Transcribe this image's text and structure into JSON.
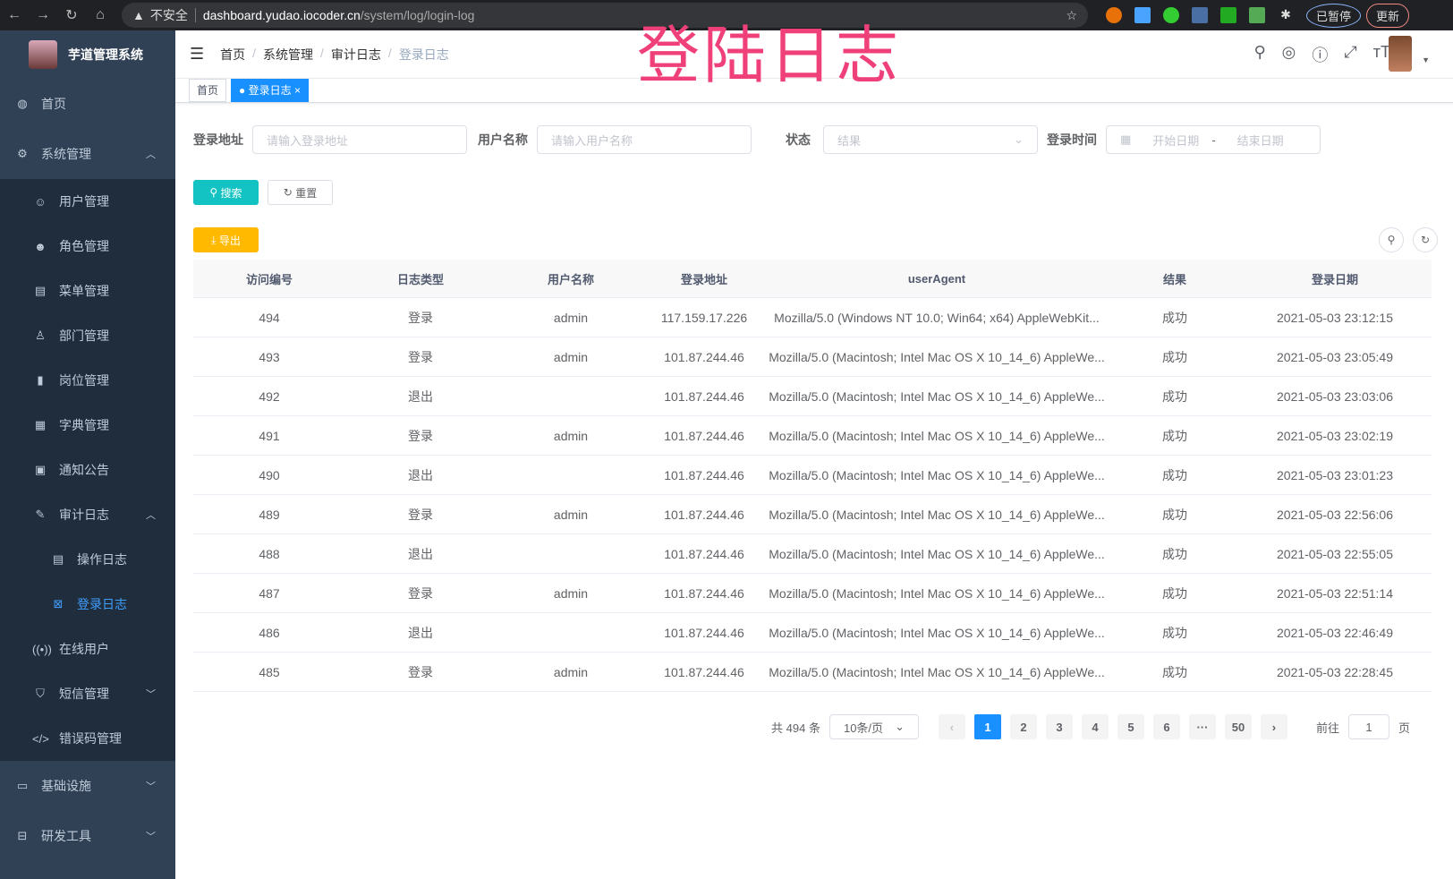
{
  "browser": {
    "url_host": "dashboard.yudao.iocoder.cn",
    "url_path": "/system/log/login-log",
    "security": "不安全",
    "profile": "已暂停",
    "update": "更新"
  },
  "overlay_title": "登陆日志",
  "sidebar": {
    "title": "芋道管理系统",
    "items": [
      {
        "label": "首页",
        "icon": "dashboard-icon"
      },
      {
        "label": "系统管理",
        "icon": "gear-icon",
        "expanded": true,
        "children": [
          {
            "label": "用户管理",
            "icon": "user-icon"
          },
          {
            "label": "角色管理",
            "icon": "peoples-icon"
          },
          {
            "label": "菜单管理",
            "icon": "tree-table-icon"
          },
          {
            "label": "部门管理",
            "icon": "tree-icon"
          },
          {
            "label": "岗位管理",
            "icon": "post-icon"
          },
          {
            "label": "字典管理",
            "icon": "dict-icon"
          },
          {
            "label": "通知公告",
            "icon": "message-icon"
          },
          {
            "label": "审计日志",
            "icon": "log-icon",
            "expanded": true,
            "children": [
              {
                "label": "操作日志",
                "icon": "form-icon"
              },
              {
                "label": "登录日志",
                "icon": "logininfor-icon",
                "active": true
              }
            ]
          },
          {
            "label": "在线用户",
            "icon": "online-icon"
          },
          {
            "label": "短信管理",
            "icon": "shield-icon"
          },
          {
            "label": "错误码管理",
            "icon": "code-icon"
          }
        ]
      },
      {
        "label": "基础设施",
        "icon": "monitor-icon"
      },
      {
        "label": "研发工具",
        "icon": "tool-icon"
      }
    ]
  },
  "header": {
    "breadcrumb": [
      "首页",
      "系统管理",
      "审计日志",
      "登录日志"
    ]
  },
  "tags": [
    {
      "label": "首页"
    },
    {
      "label": "登录日志",
      "active": true
    }
  ],
  "filters": {
    "address_label": "登录地址",
    "address_placeholder": "请输入登录地址",
    "username_label": "用户名称",
    "username_placeholder": "请输入用户名称",
    "status_label": "状态",
    "status_placeholder": "结果",
    "time_label": "登录时间",
    "start_placeholder": "开始日期",
    "end_placeholder": "结束日期",
    "range_sep": "-"
  },
  "buttons": {
    "search": "搜索",
    "reset": "重置",
    "export": "导出"
  },
  "table": {
    "columns": [
      "访问编号",
      "日志类型",
      "用户名称",
      "登录地址",
      "userAgent",
      "结果",
      "登录日期"
    ],
    "rows": [
      [
        "494",
        "登录",
        "admin",
        "117.159.17.226",
        "Mozilla/5.0 (Windows NT 10.0; Win64; x64) AppleWebKit...",
        "成功",
        "2021-05-03 23:12:15"
      ],
      [
        "493",
        "登录",
        "admin",
        "101.87.244.46",
        "Mozilla/5.0 (Macintosh; Intel Mac OS X 10_14_6) AppleWe...",
        "成功",
        "2021-05-03 23:05:49"
      ],
      [
        "492",
        "退出",
        "",
        "101.87.244.46",
        "Mozilla/5.0 (Macintosh; Intel Mac OS X 10_14_6) AppleWe...",
        "成功",
        "2021-05-03 23:03:06"
      ],
      [
        "491",
        "登录",
        "admin",
        "101.87.244.46",
        "Mozilla/5.0 (Macintosh; Intel Mac OS X 10_14_6) AppleWe...",
        "成功",
        "2021-05-03 23:02:19"
      ],
      [
        "490",
        "退出",
        "",
        "101.87.244.46",
        "Mozilla/5.0 (Macintosh; Intel Mac OS X 10_14_6) AppleWe...",
        "成功",
        "2021-05-03 23:01:23"
      ],
      [
        "489",
        "登录",
        "admin",
        "101.87.244.46",
        "Mozilla/5.0 (Macintosh; Intel Mac OS X 10_14_6) AppleWe...",
        "成功",
        "2021-05-03 22:56:06"
      ],
      [
        "488",
        "退出",
        "",
        "101.87.244.46",
        "Mozilla/5.0 (Macintosh; Intel Mac OS X 10_14_6) AppleWe...",
        "成功",
        "2021-05-03 22:55:05"
      ],
      [
        "487",
        "登录",
        "admin",
        "101.87.244.46",
        "Mozilla/5.0 (Macintosh; Intel Mac OS X 10_14_6) AppleWe...",
        "成功",
        "2021-05-03 22:51:14"
      ],
      [
        "486",
        "退出",
        "",
        "101.87.244.46",
        "Mozilla/5.0 (Macintosh; Intel Mac OS X 10_14_6) AppleWe...",
        "成功",
        "2021-05-03 22:46:49"
      ],
      [
        "485",
        "登录",
        "admin",
        "101.87.244.46",
        "Mozilla/5.0 (Macintosh; Intel Mac OS X 10_14_6) AppleWe...",
        "成功",
        "2021-05-03 22:28:45"
      ]
    ]
  },
  "pagination": {
    "total": "共 494 条",
    "page_size": "10条/页",
    "pages": [
      "1",
      "2",
      "3",
      "4",
      "5",
      "6",
      "···",
      "50"
    ],
    "current": "1",
    "goto_label": "前往",
    "goto_value": "1",
    "page_unit": "页"
  },
  "colors": {
    "sidebar": "#304156",
    "submenu": "#1f2d3d",
    "primary": "#1890ff",
    "search": "#13c2c2",
    "export": "#ffba00",
    "overlay": "#f0407a"
  }
}
